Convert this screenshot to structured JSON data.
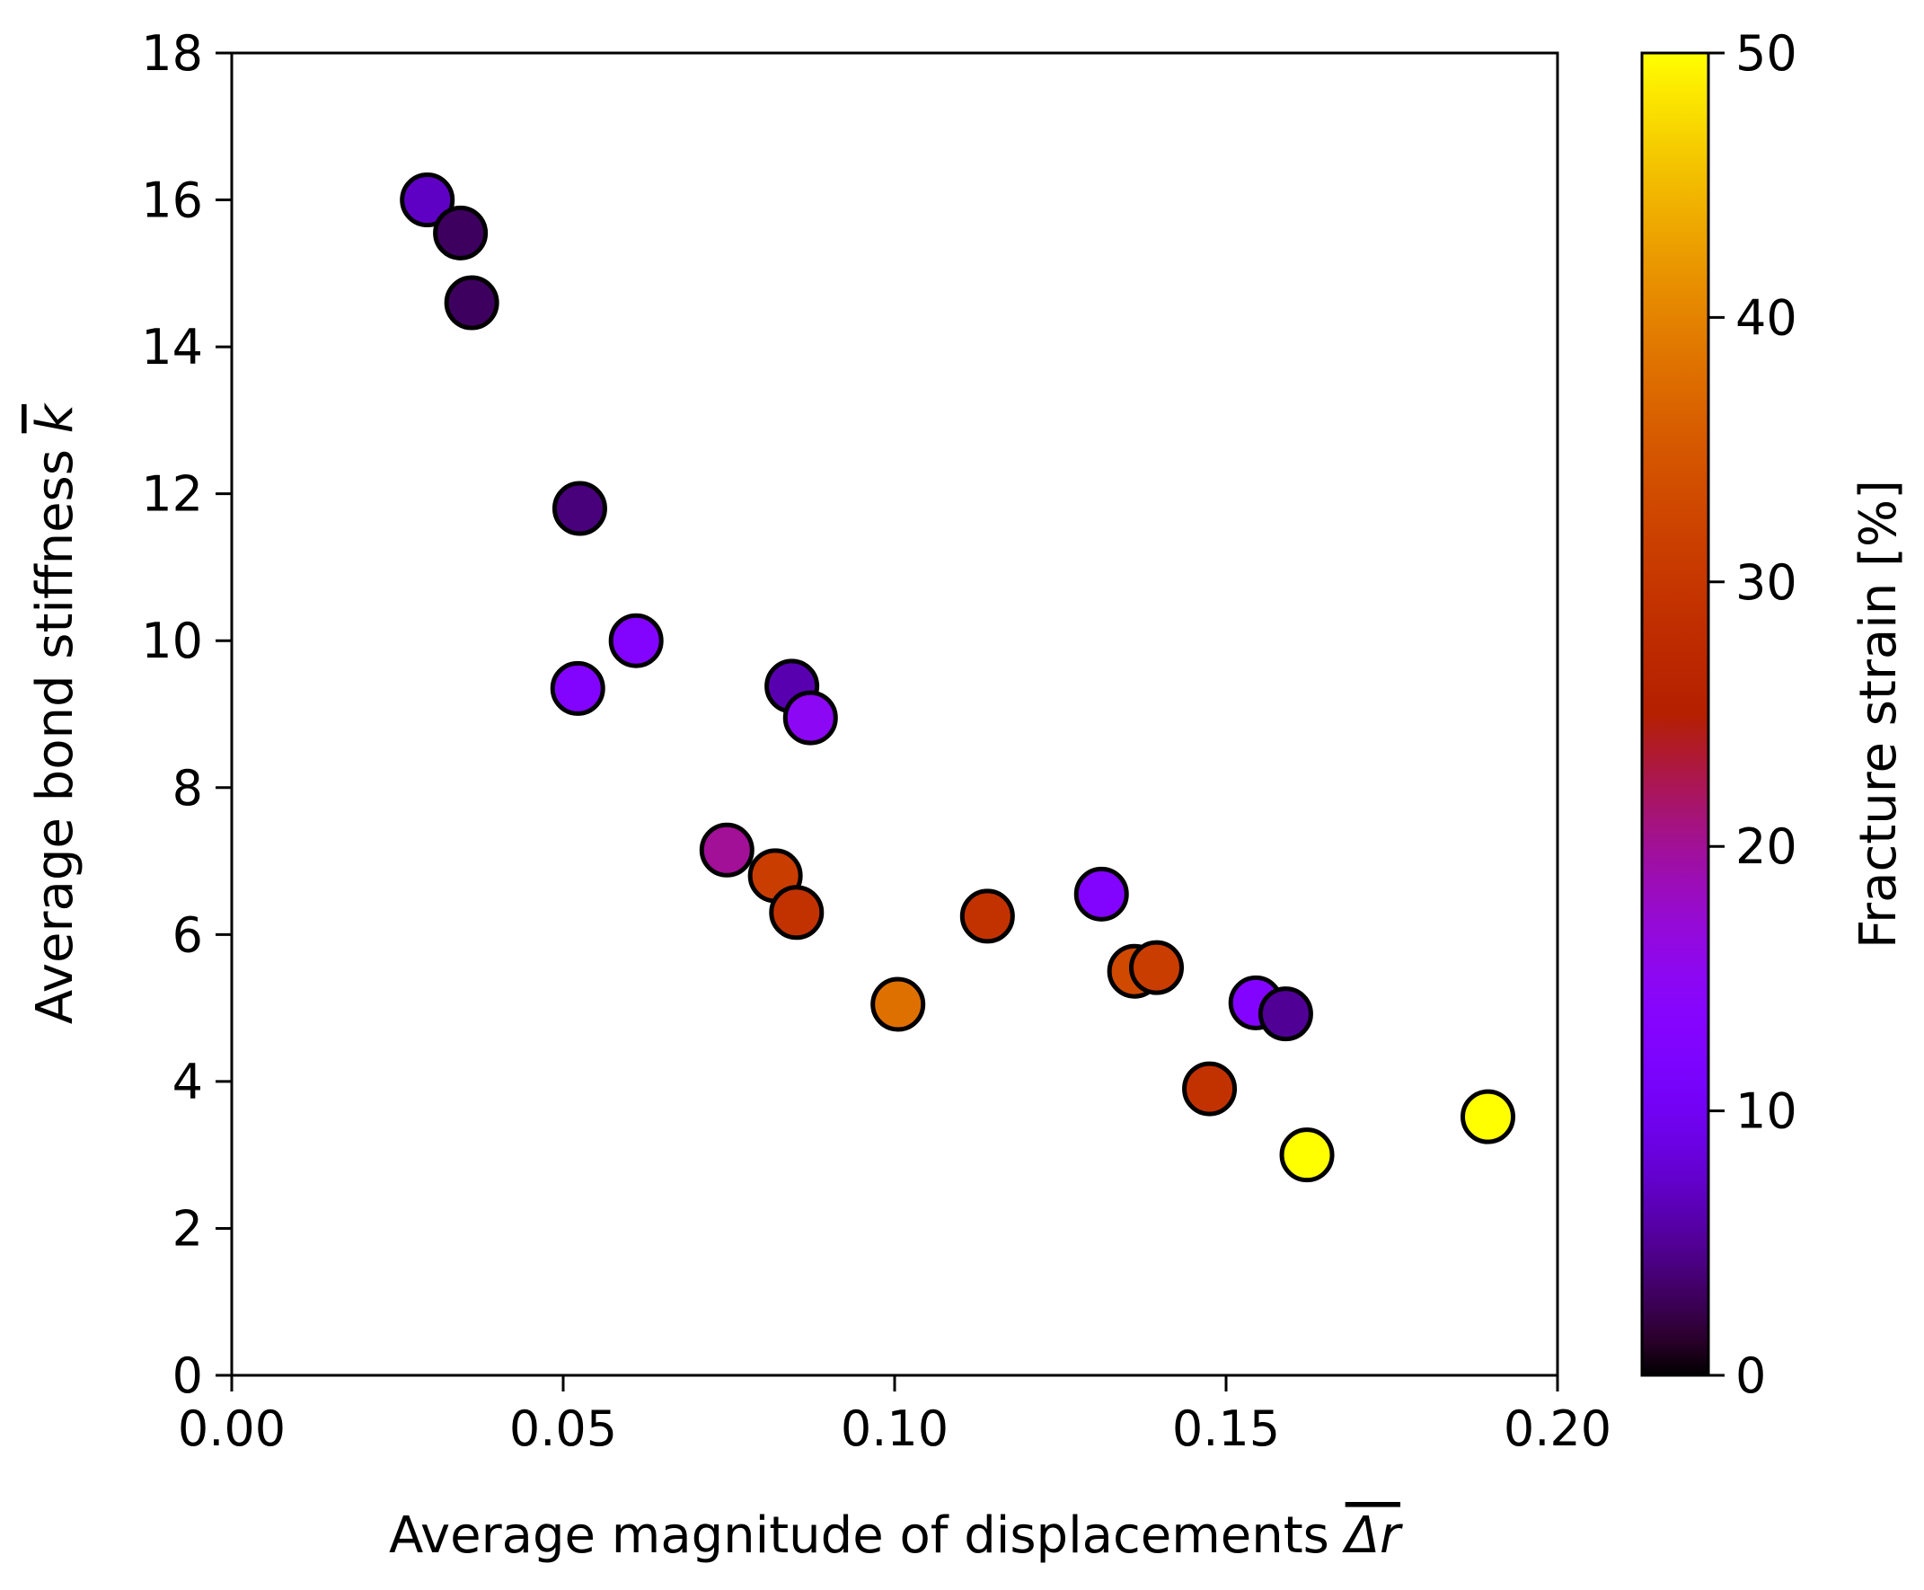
{
  "chart_data": {
    "type": "scatter",
    "xlabel": "Average magnitude of displacements Δr",
    "ylabel": "Average bond stiffness k",
    "xlabel_text": "Average magnitude of displacements ",
    "xlabel_symbol": "Δr",
    "ylabel_text": "Average bond stiffness ",
    "ylabel_symbol": "k",
    "xlim": [
      0,
      0.2
    ],
    "ylim": [
      0,
      18
    ],
    "xticks": [
      0.0,
      0.05,
      0.1,
      0.15,
      0.2
    ],
    "xtick_labels": [
      "0.00",
      "0.05",
      "0.10",
      "0.15",
      "0.20"
    ],
    "yticks": [
      0,
      2,
      4,
      6,
      8,
      10,
      12,
      14,
      16,
      18
    ],
    "ytick_labels": [
      "0",
      "2",
      "4",
      "6",
      "8",
      "10",
      "12",
      "14",
      "16",
      "18"
    ],
    "grid": false,
    "colormap": "gnuplot",
    "colorbar": {
      "label": "Fracture strain [%]",
      "range": [
        0,
        50
      ],
      "ticks": [
        0,
        10,
        20,
        30,
        40,
        50
      ],
      "tick_labels": [
        "0",
        "10",
        "20",
        "30",
        "40",
        "50"
      ]
    },
    "points": [
      {
        "x": 0.0295,
        "y": 16.0,
        "c": 7
      },
      {
        "x": 0.0345,
        "y": 15.55,
        "c": 3
      },
      {
        "x": 0.0362,
        "y": 14.6,
        "c": 3
      },
      {
        "x": 0.0525,
        "y": 11.8,
        "c": 4
      },
      {
        "x": 0.0522,
        "y": 9.35,
        "c": 13
      },
      {
        "x": 0.061,
        "y": 10.0,
        "c": 13
      },
      {
        "x": 0.0845,
        "y": 9.38,
        "c": 6
      },
      {
        "x": 0.0873,
        "y": 8.95,
        "c": 15
      },
      {
        "x": 0.0747,
        "y": 7.15,
        "c": 20
      },
      {
        "x": 0.082,
        "y": 6.8,
        "c": 31
      },
      {
        "x": 0.0852,
        "y": 6.3,
        "c": 29
      },
      {
        "x": 0.1005,
        "y": 5.05,
        "c": 38
      },
      {
        "x": 0.114,
        "y": 6.25,
        "c": 29
      },
      {
        "x": 0.1312,
        "y": 6.55,
        "c": 13
      },
      {
        "x": 0.1362,
        "y": 5.5,
        "c": 33
      },
      {
        "x": 0.1395,
        "y": 5.55,
        "c": 31
      },
      {
        "x": 0.1545,
        "y": 5.07,
        "c": 13
      },
      {
        "x": 0.159,
        "y": 4.92,
        "c": 5
      },
      {
        "x": 0.1475,
        "y": 3.9,
        "c": 29
      },
      {
        "x": 0.1622,
        "y": 3.0,
        "c": 50
      },
      {
        "x": 0.1895,
        "y": 3.52,
        "c": 50
      }
    ]
  }
}
